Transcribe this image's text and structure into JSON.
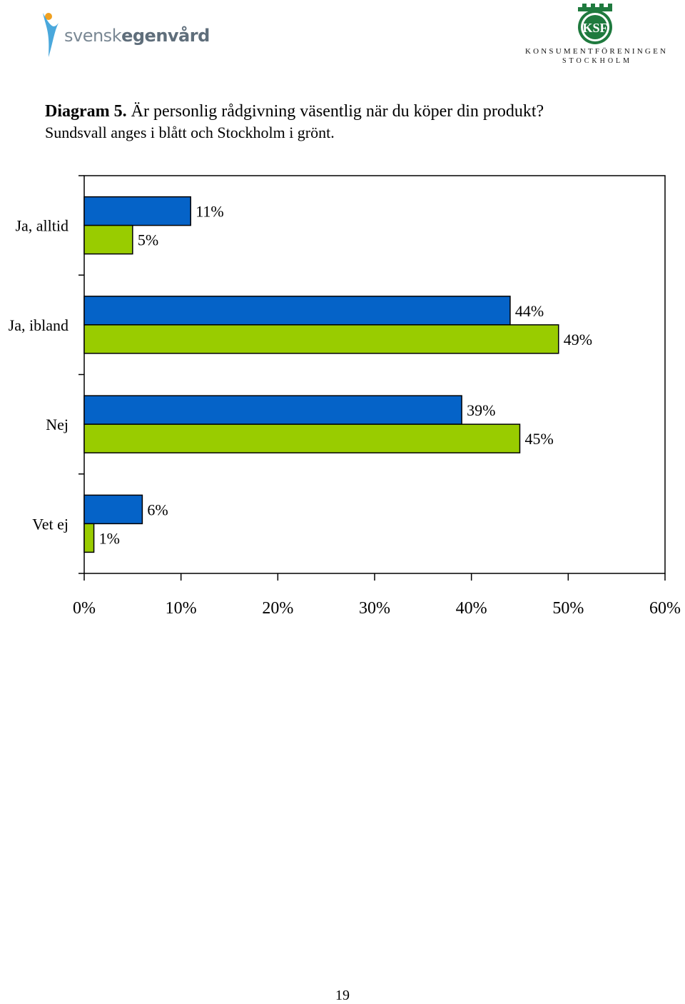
{
  "header": {
    "left_logo_text_light": "svensk",
    "left_logo_text_bold": "egenvård",
    "right_logo_monogram": "KSF",
    "right_logo_line1": "KONSUMENTFÖRENINGEN",
    "right_logo_line2": "STOCKHOLM"
  },
  "caption": {
    "label": "Diagram 5.",
    "title": "Är personlig rådgivning väsentlig när du köper din produkt?",
    "subtitle": "Sundsvall anges i blått och Stockholm i grönt."
  },
  "colors": {
    "sundsvall": "#0563c8",
    "stockholm": "#99cc00"
  },
  "chart_data": {
    "type": "bar",
    "orientation": "horizontal",
    "categories": [
      "Ja, alltid",
      "Ja, ibland",
      "Nej",
      "Vet ej"
    ],
    "series": [
      {
        "values": [
          11,
          44,
          39,
          6
        ],
        "labels": [
          "11%",
          "44%",
          "39%",
          "6%"
        ],
        "color": "#0563c8"
      },
      {
        "values": [
          5,
          49,
          45,
          1
        ],
        "labels": [
          "5%",
          "49%",
          "45%",
          "1%"
        ],
        "color": "#99cc00"
      }
    ],
    "xlim": [
      0,
      60
    ],
    "xticks": [
      0,
      10,
      20,
      30,
      40,
      50,
      60
    ],
    "xtick_labels": [
      "0%",
      "10%",
      "20%",
      "30%",
      "40%",
      "50%",
      "60%"
    ],
    "grid": false,
    "legend": false
  },
  "footer": {
    "page_number": "19"
  }
}
